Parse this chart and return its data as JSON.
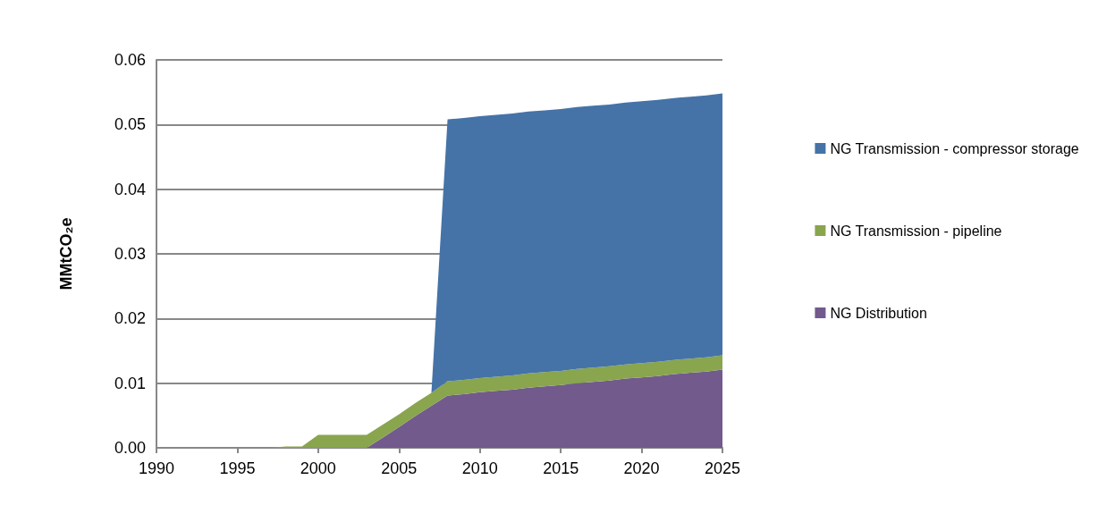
{
  "chart_data": {
    "type": "area",
    "stacked": true,
    "ylabel": "MMtCO₂e",
    "x": [
      1990,
      1991,
      1992,
      1993,
      1994,
      1995,
      1996,
      1997,
      1998,
      1999,
      2000,
      2001,
      2002,
      2003,
      2004,
      2005,
      2006,
      2007,
      2008,
      2009,
      2010,
      2011,
      2012,
      2013,
      2014,
      2015,
      2016,
      2017,
      2018,
      2019,
      2020,
      2021,
      2022,
      2023,
      2024,
      2025
    ],
    "series": [
      {
        "name": "NG Distribution",
        "color": "#725a8d",
        "values": [
          0,
          0,
          0,
          0,
          0,
          0,
          0,
          0,
          0,
          0,
          0,
          0,
          0,
          0,
          0.0016,
          0.0032,
          0.0049,
          0.0065,
          0.0081,
          0.0083,
          0.0086,
          0.0088,
          0.009,
          0.0093,
          0.0095,
          0.0097,
          0.01,
          0.0102,
          0.0104,
          0.0107,
          0.0109,
          0.0111,
          0.0114,
          0.0116,
          0.0118,
          0.0121
        ]
      },
      {
        "name": "NG Transmission - pipeline",
        "color": "#89a54e",
        "values": [
          0,
          0,
          0,
          0,
          0,
          0,
          0,
          0,
          0.0002,
          0.0002,
          0.002,
          0.002,
          0.002,
          0.002,
          0.002,
          0.002,
          0.002,
          0.002,
          0.0022,
          0.0022,
          0.0022,
          0.0022,
          0.0022,
          0.0022,
          0.0022,
          0.0022,
          0.0022,
          0.0022,
          0.0022,
          0.0022,
          0.0022,
          0.0022,
          0.0022,
          0.0022,
          0.0022,
          0.0022
        ]
      },
      {
        "name": "NG Transmission - compressor storage",
        "color": "#4573a7",
        "values": [
          0,
          0,
          0,
          0,
          0,
          0,
          0,
          0,
          0,
          0,
          0,
          0,
          0,
          0,
          0,
          0,
          0,
          0,
          0.0405,
          0.0405,
          0.0405,
          0.0405,
          0.0405,
          0.0405,
          0.0405,
          0.0405,
          0.0405,
          0.0405,
          0.0405,
          0.0405,
          0.0405,
          0.0405,
          0.0405,
          0.0405,
          0.0405,
          0.0405
        ]
      }
    ],
    "xlim": [
      1990,
      2025
    ],
    "xticks": [
      1990,
      1995,
      2000,
      2005,
      2010,
      2015,
      2020,
      2025
    ],
    "ylim": [
      0,
      0.06
    ],
    "yticks": [
      {
        "value": 0,
        "label": "0.00"
      },
      0.01,
      0.02,
      0.03,
      0.04,
      0.05,
      0.06
    ],
    "grid": "y",
    "legend": "right"
  }
}
